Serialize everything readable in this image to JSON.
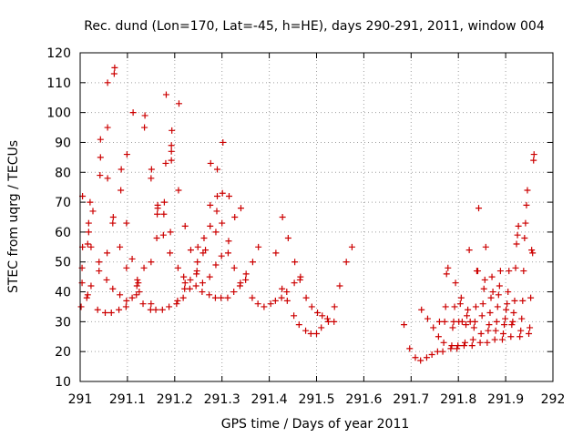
{
  "chart_data": {
    "type": "scatter",
    "title": "Rec. dund (Lon=170, Lat=-45, h=HE), days 290-291, 2011, window 004",
    "xlabel": "GPS time / Days of year 2011",
    "ylabel": "STEC from uqrg / TECUs",
    "xlim": [
      291,
      292
    ],
    "ylim": [
      10,
      120
    ],
    "xticks": [
      291,
      291.1,
      291.2,
      291.3,
      291.4,
      291.5,
      291.6,
      291.7,
      291.8,
      291.9,
      292
    ],
    "xtick_labels": [
      "291",
      "291.1",
      "291.2",
      "291.3",
      "291.4",
      "291.5",
      "291.6",
      "291.7",
      "291.8",
      "291.9",
      "292"
    ],
    "yticks": [
      10,
      20,
      30,
      40,
      50,
      60,
      70,
      80,
      90,
      100,
      110,
      120
    ],
    "ytick_labels": [
      "10",
      "20",
      "30",
      "40",
      "50",
      "60",
      "70",
      "80",
      "90",
      "100",
      "110",
      "120"
    ],
    "grid": true,
    "legend": "none",
    "marker": "+",
    "color": "#cc0000",
    "points": [
      [
        291.002,
        35
      ],
      [
        291.004,
        43
      ],
      [
        291.004,
        48
      ],
      [
        291.005,
        55
      ],
      [
        291.005,
        72
      ],
      [
        291.014,
        38
      ],
      [
        291.016,
        39
      ],
      [
        291.016,
        56
      ],
      [
        291.018,
        60
      ],
      [
        291.018,
        63
      ],
      [
        291.021,
        70
      ],
      [
        291.023,
        42
      ],
      [
        291.023,
        55
      ],
      [
        291.027,
        67
      ],
      [
        291.037,
        34
      ],
      [
        291.04,
        47
      ],
      [
        291.04,
        50
      ],
      [
        291.042,
        79
      ],
      [
        291.043,
        85
      ],
      [
        291.043,
        91
      ],
      [
        291.053,
        33
      ],
      [
        291.056,
        44
      ],
      [
        291.057,
        53
      ],
      [
        291.058,
        78
      ],
      [
        291.058,
        95
      ],
      [
        291.058,
        110
      ],
      [
        291.066,
        33
      ],
      [
        291.069,
        41
      ],
      [
        291.069,
        63
      ],
      [
        291.07,
        65
      ],
      [
        291.072,
        113
      ],
      [
        291.073,
        115
      ],
      [
        291.082,
        34
      ],
      [
        291.084,
        39
      ],
      [
        291.084,
        55
      ],
      [
        291.086,
        74
      ],
      [
        291.087,
        81
      ],
      [
        291.097,
        35
      ],
      [
        291.098,
        37
      ],
      [
        291.098,
        48
      ],
      [
        291.098,
        63
      ],
      [
        291.099,
        86
      ],
      [
        291.11,
        38
      ],
      [
        291.11,
        51
      ],
      [
        291.112,
        100
      ],
      [
        291.119,
        39
      ],
      [
        291.12,
        42
      ],
      [
        291.121,
        44
      ],
      [
        291.123,
        43
      ],
      [
        291.125,
        40
      ],
      [
        291.133,
        36
      ],
      [
        291.135,
        48
      ],
      [
        291.136,
        95
      ],
      [
        291.137,
        99
      ],
      [
        291.149,
        34
      ],
      [
        291.15,
        36
      ],
      [
        291.15,
        50
      ],
      [
        291.15,
        78
      ],
      [
        291.151,
        81
      ],
      [
        291.16,
        34
      ],
      [
        291.162,
        58
      ],
      [
        291.163,
        66
      ],
      [
        291.164,
        68
      ],
      [
        291.164,
        69
      ],
      [
        291.174,
        34
      ],
      [
        291.176,
        59
      ],
      [
        291.177,
        66
      ],
      [
        291.178,
        70
      ],
      [
        291.181,
        83
      ],
      [
        291.182,
        106
      ],
      [
        291.188,
        35
      ],
      [
        291.19,
        53
      ],
      [
        291.191,
        60
      ],
      [
        291.193,
        84
      ],
      [
        291.193,
        87
      ],
      [
        291.193,
        89
      ],
      [
        291.194,
        94
      ],
      [
        291.204,
        36
      ],
      [
        291.206,
        37
      ],
      [
        291.207,
        48
      ],
      [
        291.208,
        74
      ],
      [
        291.209,
        103
      ],
      [
        291.218,
        38
      ],
      [
        291.219,
        45
      ],
      [
        291.221,
        41
      ],
      [
        291.222,
        43
      ],
      [
        291.222,
        62
      ],
      [
        291.232,
        41
      ],
      [
        291.233,
        44
      ],
      [
        291.234,
        54
      ],
      [
        291.245,
        42
      ],
      [
        291.246,
        46
      ],
      [
        291.247,
        47
      ],
      [
        291.248,
        50
      ],
      [
        291.249,
        55
      ],
      [
        291.258,
        40
      ],
      [
        291.259,
        43
      ],
      [
        291.26,
        53
      ],
      [
        291.262,
        58
      ],
      [
        291.265,
        54
      ],
      [
        291.273,
        39
      ],
      [
        291.274,
        45
      ],
      [
        291.275,
        62
      ],
      [
        291.275,
        69
      ],
      [
        291.276,
        83
      ],
      [
        291.286,
        38
      ],
      [
        291.287,
        49
      ],
      [
        291.287,
        60
      ],
      [
        291.289,
        67
      ],
      [
        291.29,
        72
      ],
      [
        291.29,
        81
      ],
      [
        291.298,
        38
      ],
      [
        291.299,
        52
      ],
      [
        291.3,
        63
      ],
      [
        291.301,
        73
      ],
      [
        291.302,
        90
      ],
      [
        291.312,
        38
      ],
      [
        291.313,
        53
      ],
      [
        291.314,
        57
      ],
      [
        291.315,
        72
      ],
      [
        291.325,
        40
      ],
      [
        291.326,
        48
      ],
      [
        291.327,
        65
      ],
      [
        291.338,
        42
      ],
      [
        291.339,
        43
      ],
      [
        291.34,
        68
      ],
      [
        291.35,
        44
      ],
      [
        291.351,
        46
      ],
      [
        291.364,
        38
      ],
      [
        291.365,
        50
      ],
      [
        291.376,
        36
      ],
      [
        291.377,
        55
      ],
      [
        291.389,
        35
      ],
      [
        291.403,
        36
      ],
      [
        291.413,
        37
      ],
      [
        291.414,
        53
      ],
      [
        291.426,
        38
      ],
      [
        291.427,
        41
      ],
      [
        291.428,
        65
      ],
      [
        291.437,
        40
      ],
      [
        291.438,
        37
      ],
      [
        291.44,
        58
      ],
      [
        291.452,
        32
      ],
      [
        291.453,
        43
      ],
      [
        291.454,
        50
      ],
      [
        291.463,
        29
      ],
      [
        291.465,
        44
      ],
      [
        291.466,
        45
      ],
      [
        291.477,
        27
      ],
      [
        291.478,
        38
      ],
      [
        291.488,
        26
      ],
      [
        291.49,
        35
      ],
      [
        291.5,
        26
      ],
      [
        291.502,
        33
      ],
      [
        291.51,
        28
      ],
      [
        291.512,
        32
      ],
      [
        291.523,
        31
      ],
      [
        291.525,
        30
      ],
      [
        291.537,
        30
      ],
      [
        291.538,
        35
      ],
      [
        291.549,
        42
      ],
      [
        291.563,
        50
      ],
      [
        291.575,
        55
      ],
      [
        291.685,
        29
      ],
      [
        291.697,
        21
      ],
      [
        291.709,
        18
      ],
      [
        291.72,
        17
      ],
      [
        291.722,
        34
      ],
      [
        291.733,
        18
      ],
      [
        291.735,
        31
      ],
      [
        291.744,
        19
      ],
      [
        291.747,
        28
      ],
      [
        291.756,
        20
      ],
      [
        291.758,
        25
      ],
      [
        291.76,
        30
      ],
      [
        291.767,
        20
      ],
      [
        291.769,
        23
      ],
      [
        291.771,
        30
      ],
      [
        291.773,
        35
      ],
      [
        291.775,
        46
      ],
      [
        291.778,
        48
      ],
      [
        291.784,
        21
      ],
      [
        291.786,
        22
      ],
      [
        291.788,
        28
      ],
      [
        291.79,
        30
      ],
      [
        291.792,
        35
      ],
      [
        291.794,
        43
      ],
      [
        291.797,
        21
      ],
      [
        291.799,
        22
      ],
      [
        291.801,
        30
      ],
      [
        291.804,
        36
      ],
      [
        291.806,
        38
      ],
      [
        291.808,
        30
      ],
      [
        291.812,
        22
      ],
      [
        291.814,
        23
      ],
      [
        291.816,
        29
      ],
      [
        291.818,
        32
      ],
      [
        291.82,
        34
      ],
      [
        291.823,
        54
      ],
      [
        291.825,
        30
      ],
      [
        291.829,
        22
      ],
      [
        291.831,
        24
      ],
      [
        291.833,
        28
      ],
      [
        291.835,
        30
      ],
      [
        291.837,
        35
      ],
      [
        291.839,
        47
      ],
      [
        291.841,
        47
      ],
      [
        291.843,
        68
      ],
      [
        291.846,
        23
      ],
      [
        291.848,
        26
      ],
      [
        291.85,
        32
      ],
      [
        291.852,
        36
      ],
      [
        291.854,
        41
      ],
      [
        291.856,
        44
      ],
      [
        291.858,
        55
      ],
      [
        291.861,
        23
      ],
      [
        291.863,
        27
      ],
      [
        291.865,
        29
      ],
      [
        291.867,
        33
      ],
      [
        291.869,
        38
      ],
      [
        291.871,
        45
      ],
      [
        291.873,
        40
      ],
      [
        291.877,
        24
      ],
      [
        291.879,
        27
      ],
      [
        291.881,
        30
      ],
      [
        291.883,
        35
      ],
      [
        291.885,
        39
      ],
      [
        291.887,
        42
      ],
      [
        291.889,
        47
      ],
      [
        291.893,
        24
      ],
      [
        291.895,
        26
      ],
      [
        291.897,
        29
      ],
      [
        291.899,
        31
      ],
      [
        291.901,
        34
      ],
      [
        291.903,
        36
      ],
      [
        291.905,
        40
      ],
      [
        291.907,
        47
      ],
      [
        291.911,
        25
      ],
      [
        291.913,
        29
      ],
      [
        291.915,
        30
      ],
      [
        291.917,
        33
      ],
      [
        291.919,
        37
      ],
      [
        291.921,
        48
      ],
      [
        291.923,
        56
      ],
      [
        291.925,
        59
      ],
      [
        291.927,
        62
      ],
      [
        291.93,
        25
      ],
      [
        291.932,
        27
      ],
      [
        291.934,
        31
      ],
      [
        291.936,
        37
      ],
      [
        291.938,
        47
      ],
      [
        291.94,
        58
      ],
      [
        291.942,
        63
      ],
      [
        291.944,
        69
      ],
      [
        291.946,
        74
      ],
      [
        291.949,
        26
      ],
      [
        291.951,
        28
      ],
      [
        291.953,
        38
      ],
      [
        291.955,
        54
      ],
      [
        291.957,
        53
      ],
      [
        291.959,
        84
      ],
      [
        291.96,
        86
      ]
    ]
  }
}
